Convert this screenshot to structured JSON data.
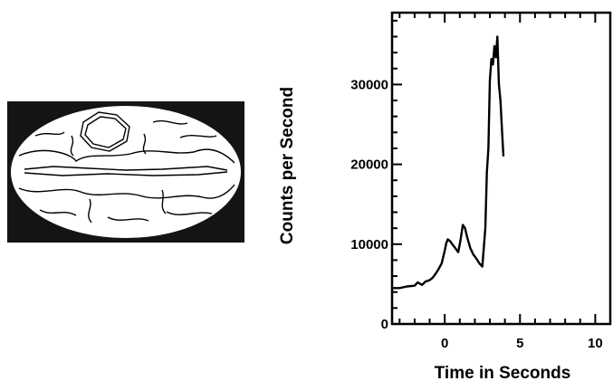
{
  "sky_map": {
    "icon": "galactic-sky-map-contour-image",
    "background_color": "#141414",
    "ellipse_color": "#ffffff",
    "contour_color": "#000000"
  },
  "chart_data": {
    "type": "line",
    "title": "",
    "xlabel": "Time in Seconds",
    "ylabel": "Counts per Second",
    "xlim": [
      -3.5,
      11
    ],
    "ylim": [
      0,
      39000
    ],
    "x_ticks": [
      0,
      5,
      10
    ],
    "x_tick_labels": [
      "0",
      "5",
      "10"
    ],
    "y_ticks": [
      0,
      10000,
      20000,
      30000
    ],
    "y_tick_labels": [
      "0",
      "10000",
      "20000",
      "30000"
    ],
    "grid": false,
    "line_color": "#000000",
    "series": [
      {
        "x": [
          -3.5,
          -3.0,
          -2.5,
          -2.0,
          -1.8,
          -1.5,
          -1.3,
          -1.0,
          -0.8,
          -0.6,
          -0.4,
          -0.2,
          0.0,
          0.1,
          0.2,
          0.35,
          0.5,
          0.7,
          0.9,
          1.05,
          1.2,
          1.35,
          1.5,
          1.7,
          1.9,
          2.1,
          2.3,
          2.5,
          2.7,
          2.8,
          2.9,
          3.0,
          3.1,
          3.2,
          3.3,
          3.4,
          3.5,
          3.6,
          3.7,
          3.8,
          3.9
        ],
        "y": [
          4500,
          4500,
          4700,
          4800,
          5200,
          4900,
          5300,
          5500,
          5800,
          6300,
          6900,
          7600,
          9200,
          10100,
          10600,
          10400,
          10000,
          9500,
          9000,
          10500,
          12400,
          12000,
          10800,
          9500,
          8700,
          8200,
          7600,
          7200,
          12000,
          19000,
          22000,
          30500,
          33200,
          32500,
          34800,
          33400,
          36000,
          30000,
          28000,
          24500,
          21000
        ]
      }
    ]
  }
}
